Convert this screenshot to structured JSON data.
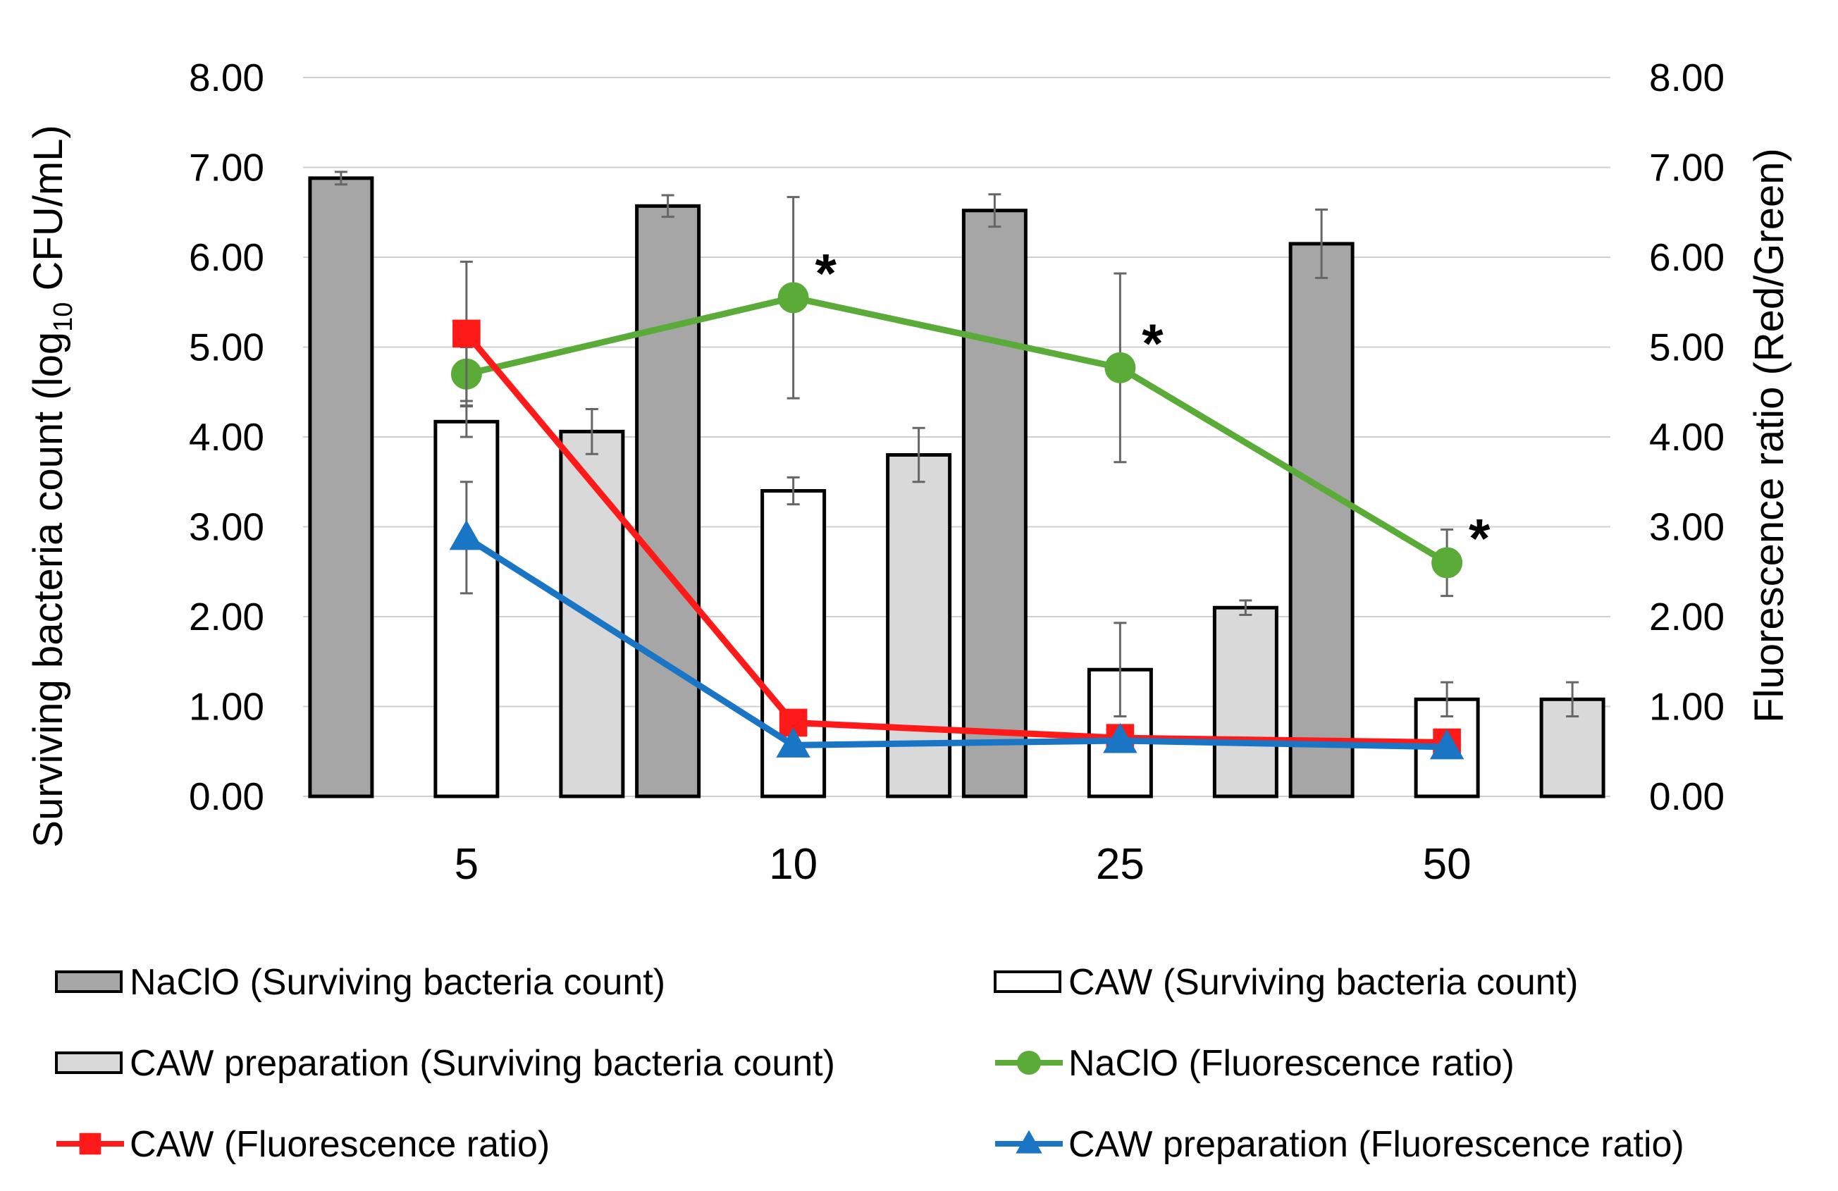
{
  "chart_data": {
    "type": "bar",
    "categories": [
      "5",
      "10",
      "25",
      "50"
    ],
    "ylabel_left_prefix": "Surviving bacteria count (log",
    "ylabel_left_sub": "10",
    "ylabel_left_suffix": " CFU/mL)",
    "ylabel_right": "Fluorescence ratio (Red/Green)",
    "ylim_left": [
      0,
      8
    ],
    "ylim_right": [
      0,
      8
    ],
    "yticks": [
      "0.00",
      "1.00",
      "2.00",
      "3.00",
      "4.00",
      "5.00",
      "6.00",
      "7.00",
      "8.00"
    ],
    "grid": true,
    "legend_position": "bottom",
    "bar_series": [
      {
        "name": "NaClO (Surviving bacteria count)",
        "values": [
          6.88,
          6.57,
          6.52,
          6.15
        ],
        "errors": [
          0.07,
          0.12,
          0.18,
          0.38
        ],
        "color": "#a6a6a6"
      },
      {
        "name": "CAW (Surviving bacteria count)",
        "values": [
          4.17,
          3.4,
          1.41,
          1.08
        ],
        "errors": [
          0.17,
          0.15,
          0.52,
          0.19
        ],
        "color": "#ffffff"
      },
      {
        "name": "CAW preparation (Surviving bacteria count)",
        "values": [
          4.06,
          3.8,
          2.1,
          1.08
        ],
        "errors": [
          0.25,
          0.3,
          0.08,
          0.19
        ],
        "color": "#d9d9d9"
      }
    ],
    "line_series": [
      {
        "name": "NaClO (Fluorescence ratio)",
        "values": [
          4.7,
          5.55,
          4.77,
          2.6
        ],
        "errors": [
          0.3,
          1.12,
          1.05,
          0.37
        ],
        "color": "#5aab38",
        "marker": "circle",
        "significant": [
          false,
          true,
          true,
          true
        ]
      },
      {
        "name": "CAW (Fluorescence ratio)",
        "values": [
          5.15,
          0.82,
          0.65,
          0.6
        ],
        "errors": [
          0.8,
          0,
          0,
          0
        ],
        "color": "#ff1a1a",
        "marker": "square",
        "significant": [
          false,
          false,
          false,
          false
        ]
      },
      {
        "name": "CAW preparation (Fluorescence ratio)",
        "values": [
          2.88,
          0.57,
          0.62,
          0.55
        ],
        "errors": [
          0.62,
          0,
          0,
          0
        ],
        "color": "#1a75c4",
        "marker": "triangle",
        "significant": [
          false,
          false,
          false,
          false
        ]
      }
    ],
    "annotation_symbol": "*"
  }
}
